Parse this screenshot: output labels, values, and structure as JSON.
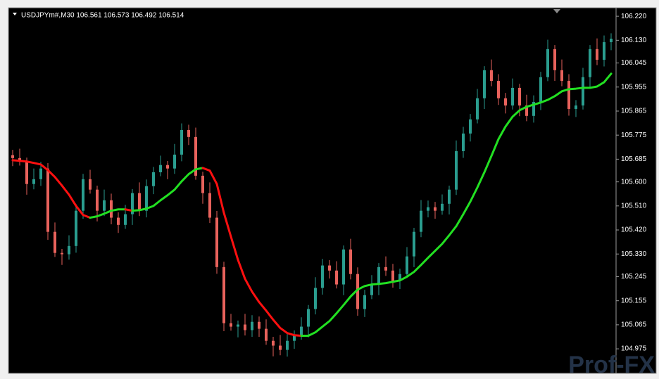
{
  "chart_data": {
    "type": "candlestick",
    "title": "USDJPYm#,M30  106.561 106.573 106.492 106.514",
    "watermark": "Prof-FX",
    "up_color": "#2a9d8f",
    "down_color": "#e8625c",
    "ylim": [
      104.891,
      106.244
    ],
    "yticks": [
      {
        "value": 106.22,
        "label": "106.220"
      },
      {
        "value": 106.13,
        "label": "106.130"
      },
      {
        "value": 106.045,
        "label": "106.045"
      },
      {
        "value": 105.955,
        "label": "105.955"
      },
      {
        "value": 105.865,
        "label": "105.865"
      },
      {
        "value": 105.775,
        "label": "105.775"
      },
      {
        "value": 105.685,
        "label": "105.685"
      },
      {
        "value": 105.6,
        "label": "105.600"
      },
      {
        "value": 105.51,
        "label": "105.510"
      },
      {
        "value": 105.42,
        "label": "105.420"
      },
      {
        "value": 105.33,
        "label": "105.330"
      },
      {
        "value": 105.245,
        "label": "105.245"
      },
      {
        "value": 105.155,
        "label": "105.155"
      },
      {
        "value": 105.065,
        "label": "105.065"
      },
      {
        "value": 104.975,
        "label": "104.975"
      }
    ],
    "open": [
      105.7,
      105.689,
      105.676,
      105.592,
      105.61,
      105.65,
      105.413,
      105.334,
      105.329,
      105.36,
      105.492,
      105.61,
      105.571,
      105.492,
      105.531,
      105.466,
      105.439,
      105.479,
      105.558,
      105.492,
      105.584,
      105.636,
      105.663,
      105.65,
      105.702,
      105.794,
      105.768,
      105.623,
      105.558,
      105.466,
      105.281,
      105.071,
      105.058,
      105.066,
      105.045,
      105.076,
      105.05,
      105.005,
      104.987,
      104.971,
      105.005,
      105.024,
      105.058,
      105.124,
      105.203,
      105.287,
      105.268,
      105.216,
      105.347,
      105.255,
      105.124,
      105.176,
      105.216,
      105.281,
      105.268,
      105.229,
      105.255,
      105.321,
      105.413,
      105.492,
      105.505,
      105.492,
      105.518,
      105.571,
      105.715,
      105.781,
      105.834,
      105.913,
      106.018,
      105.978,
      105.913,
      105.886,
      105.952,
      105.886,
      105.847,
      105.899,
      105.992,
      106.097,
      106.018,
      105.978,
      105.873,
      105.886,
      105.992,
      106.097,
      106.057,
      106.123
    ],
    "high": [
      105.72,
      105.724,
      105.691,
      105.65,
      105.675,
      105.67,
      105.448,
      105.349,
      105.4,
      105.517,
      105.63,
      105.645,
      105.586,
      105.571,
      105.556,
      105.486,
      105.514,
      105.573,
      105.598,
      105.609,
      105.656,
      105.698,
      105.678,
      105.742,
      105.819,
      105.814,
      105.803,
      105.638,
      105.598,
      105.491,
      105.301,
      105.106,
      105.081,
      105.106,
      105.101,
      105.096,
      105.085,
      105.02,
      105.027,
      105.03,
      105.044,
      105.093,
      105.139,
      105.243,
      105.312,
      105.307,
      105.303,
      105.362,
      105.387,
      105.28,
      105.196,
      105.251,
      105.296,
      105.321,
      105.293,
      105.275,
      105.356,
      105.428,
      105.532,
      105.53,
      105.525,
      105.553,
      105.586,
      105.755,
      105.806,
      105.854,
      105.948,
      106.033,
      106.058,
      106.003,
      105.933,
      105.987,
      105.967,
      105.926,
      105.924,
      106.012,
      106.132,
      106.112,
      106.058,
      106.003,
      105.906,
      106.027,
      106.112,
      106.137,
      106.148,
      106.156
    ],
    "low": [
      105.659,
      105.661,
      105.552,
      105.572,
      105.585,
      105.383,
      105.319,
      105.289,
      105.309,
      105.335,
      105.462,
      105.556,
      105.452,
      105.472,
      105.441,
      105.409,
      105.424,
      105.439,
      105.472,
      105.467,
      105.554,
      105.621,
      105.61,
      105.63,
      105.677,
      105.738,
      105.608,
      105.518,
      105.446,
      105.256,
      105.041,
      105.043,
      105.018,
      105.025,
      105.02,
      105.02,
      104.99,
      104.947,
      104.951,
      104.946,
      104.975,
      105.009,
      105.018,
      105.104,
      105.178,
      105.238,
      105.201,
      105.176,
      105.235,
      105.099,
      105.094,
      105.161,
      105.176,
      105.248,
      105.204,
      105.199,
      105.24,
      105.281,
      105.393,
      105.467,
      105.462,
      105.477,
      105.478,
      105.551,
      105.69,
      105.751,
      105.819,
      105.873,
      105.958,
      105.888,
      105.856,
      105.871,
      105.846,
      105.827,
      105.822,
      105.869,
      105.977,
      105.978,
      105.958,
      105.848,
      105.843,
      105.871,
      105.952,
      106.037,
      106.032,
      106.093
    ],
    "close": [
      105.689,
      105.676,
      105.592,
      105.61,
      105.65,
      105.413,
      105.334,
      105.329,
      105.36,
      105.492,
      105.61,
      105.571,
      105.492,
      105.531,
      105.466,
      105.439,
      105.479,
      105.558,
      105.492,
      105.584,
      105.636,
      105.663,
      105.65,
      105.702,
      105.794,
      105.768,
      105.623,
      105.558,
      105.466,
      105.281,
      105.071,
      105.058,
      105.066,
      105.045,
      105.076,
      105.05,
      105.005,
      104.987,
      104.971,
      105.005,
      105.024,
      105.058,
      105.124,
      105.203,
      105.287,
      105.268,
      105.216,
      105.347,
      105.255,
      105.124,
      105.176,
      105.216,
      105.281,
      105.268,
      105.229,
      105.255,
      105.321,
      105.413,
      105.492,
      105.505,
      105.492,
      105.518,
      105.571,
      105.715,
      105.781,
      105.834,
      105.913,
      106.018,
      105.978,
      105.913,
      105.886,
      105.952,
      105.886,
      105.847,
      105.899,
      105.992,
      106.097,
      106.018,
      105.978,
      105.873,
      105.886,
      105.992,
      106.097,
      106.057,
      106.123,
      106.136
    ],
    "ma": {
      "rising_color": "#22e022",
      "falling_color": "#ff1010",
      "values": [
        105.681,
        105.679,
        105.676,
        105.671,
        105.665,
        105.644,
        105.618,
        105.586,
        105.552,
        105.51,
        105.476,
        105.466,
        105.471,
        105.481,
        105.492,
        105.497,
        105.497,
        105.492,
        105.494,
        105.5,
        105.51,
        105.531,
        105.55,
        105.571,
        105.602,
        105.629,
        105.647,
        105.652,
        105.642,
        105.592,
        105.484,
        105.395,
        105.308,
        105.237,
        105.189,
        105.15,
        105.118,
        105.084,
        105.053,
        105.034,
        105.026,
        105.024,
        105.024,
        105.037,
        105.058,
        105.079,
        105.108,
        105.139,
        105.171,
        105.197,
        105.21,
        105.216,
        105.218,
        105.221,
        105.226,
        105.231,
        105.245,
        105.263,
        105.289,
        105.316,
        105.342,
        105.368,
        105.4,
        105.434,
        105.479,
        105.526,
        105.579,
        105.636,
        105.697,
        105.76,
        105.807,
        105.844,
        105.868,
        105.881,
        105.889,
        105.897,
        105.907,
        105.921,
        105.939,
        105.947,
        105.949,
        105.952,
        105.952,
        105.957,
        105.973,
        106.005
      ]
    }
  }
}
